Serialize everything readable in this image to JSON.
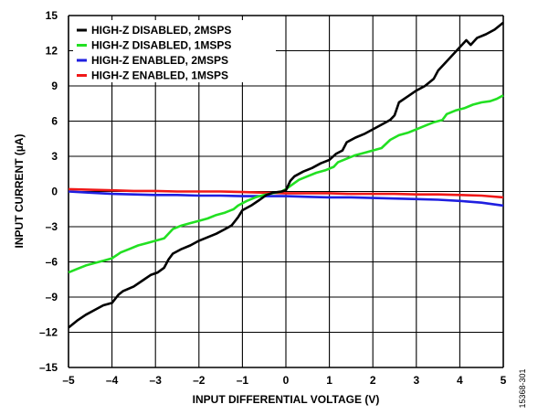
{
  "chart_data": {
    "type": "line",
    "title": "",
    "xlabel": "INPUT DIFFERENTIAL VOLTAGE (V)",
    "ylabel": "INPUT CURRENT (µA)",
    "xlim": [
      -5,
      5
    ],
    "ylim": [
      -15,
      15
    ],
    "x_ticks": [
      -5,
      -4,
      -3,
      -2,
      -1,
      0,
      1,
      2,
      3,
      4,
      5
    ],
    "x_tick_labels": [
      "–5",
      "–4",
      "–3",
      "–2",
      "–1",
      "0",
      "1",
      "2",
      "3",
      "4",
      "5"
    ],
    "y_ticks": [
      -15,
      -12,
      -9,
      -6,
      -3,
      0,
      3,
      6,
      9,
      12,
      15
    ],
    "y_tick_labels": [
      "–15",
      "–12",
      "–9",
      "–6",
      "–3",
      "0",
      "3",
      "6",
      "9",
      "12",
      "15"
    ],
    "grid": true,
    "legend_position": "top-left",
    "figure_id": "15368-301",
    "series": [
      {
        "name": "HIGH-Z DISABLED, 2MSPS",
        "color": "#000000",
        "points": [
          [
            -5,
            -11.6
          ],
          [
            -4.8,
            -11.0
          ],
          [
            -4.6,
            -10.5
          ],
          [
            -4.4,
            -10.1
          ],
          [
            -4.2,
            -9.7
          ],
          [
            -4.0,
            -9.5
          ],
          [
            -3.85,
            -8.8
          ],
          [
            -3.75,
            -8.5
          ],
          [
            -3.5,
            -8.1
          ],
          [
            -3.3,
            -7.6
          ],
          [
            -3.1,
            -7.1
          ],
          [
            -2.95,
            -6.9
          ],
          [
            -2.8,
            -6.5
          ],
          [
            -2.7,
            -5.8
          ],
          [
            -2.6,
            -5.3
          ],
          [
            -2.4,
            -4.9
          ],
          [
            -2.2,
            -4.6
          ],
          [
            -2.0,
            -4.2
          ],
          [
            -1.8,
            -3.9
          ],
          [
            -1.6,
            -3.6
          ],
          [
            -1.4,
            -3.2
          ],
          [
            -1.25,
            -2.9
          ],
          [
            -1.1,
            -2.2
          ],
          [
            -1.0,
            -1.6
          ],
          [
            -0.8,
            -1.2
          ],
          [
            -0.6,
            -0.7
          ],
          [
            -0.45,
            -0.3
          ],
          [
            -0.3,
            -0.1
          ],
          [
            -0.1,
            0.0
          ],
          [
            0,
            0.1
          ],
          [
            0.1,
            0.9
          ],
          [
            0.2,
            1.3
          ],
          [
            0.4,
            1.7
          ],
          [
            0.6,
            2.0
          ],
          [
            0.8,
            2.4
          ],
          [
            1.0,
            2.7
          ],
          [
            1.15,
            3.2
          ],
          [
            1.3,
            3.5
          ],
          [
            1.4,
            4.2
          ],
          [
            1.6,
            4.6
          ],
          [
            1.8,
            4.9
          ],
          [
            2.0,
            5.3
          ],
          [
            2.2,
            5.7
          ],
          [
            2.4,
            6.1
          ],
          [
            2.5,
            6.5
          ],
          [
            2.6,
            7.6
          ],
          [
            2.8,
            8.1
          ],
          [
            3.0,
            8.6
          ],
          [
            3.2,
            9.0
          ],
          [
            3.4,
            9.6
          ],
          [
            3.5,
            10.3
          ],
          [
            3.65,
            10.9
          ],
          [
            3.8,
            11.5
          ],
          [
            4.0,
            12.3
          ],
          [
            4.15,
            12.9
          ],
          [
            4.25,
            12.5
          ],
          [
            4.4,
            13.1
          ],
          [
            4.6,
            13.4
          ],
          [
            4.8,
            13.8
          ],
          [
            5.0,
            14.4
          ]
        ]
      },
      {
        "name": "HIGH-Z DISABLED, 1MSPS",
        "color": "#22e022",
        "points": [
          [
            -5,
            -6.9
          ],
          [
            -4.8,
            -6.6
          ],
          [
            -4.6,
            -6.3
          ],
          [
            -4.4,
            -6.1
          ],
          [
            -4.2,
            -5.9
          ],
          [
            -4.0,
            -5.7
          ],
          [
            -3.8,
            -5.2
          ],
          [
            -3.6,
            -4.9
          ],
          [
            -3.4,
            -4.6
          ],
          [
            -3.2,
            -4.4
          ],
          [
            -3.0,
            -4.2
          ],
          [
            -2.8,
            -4.0
          ],
          [
            -2.6,
            -3.2
          ],
          [
            -2.4,
            -2.9
          ],
          [
            -2.2,
            -2.7
          ],
          [
            -2.0,
            -2.5
          ],
          [
            -1.8,
            -2.3
          ],
          [
            -1.6,
            -2.0
          ],
          [
            -1.4,
            -1.8
          ],
          [
            -1.2,
            -1.5
          ],
          [
            -1.1,
            -1.2
          ],
          [
            -0.9,
            -0.8
          ],
          [
            -0.7,
            -0.5
          ],
          [
            -0.5,
            -0.3
          ],
          [
            -0.3,
            -0.15
          ],
          [
            -0.1,
            0.0
          ],
          [
            0,
            0.2
          ],
          [
            0.15,
            0.6
          ],
          [
            0.3,
            1.0
          ],
          [
            0.5,
            1.3
          ],
          [
            0.7,
            1.6
          ],
          [
            0.9,
            1.8
          ],
          [
            1.1,
            2.1
          ],
          [
            1.2,
            2.5
          ],
          [
            1.4,
            2.8
          ],
          [
            1.6,
            3.1
          ],
          [
            1.8,
            3.3
          ],
          [
            2.0,
            3.5
          ],
          [
            2.2,
            3.7
          ],
          [
            2.4,
            4.4
          ],
          [
            2.6,
            4.8
          ],
          [
            2.8,
            5.0
          ],
          [
            3.0,
            5.3
          ],
          [
            3.2,
            5.6
          ],
          [
            3.4,
            5.9
          ],
          [
            3.6,
            6.1
          ],
          [
            3.7,
            6.6
          ],
          [
            3.9,
            6.9
          ],
          [
            4.1,
            7.1
          ],
          [
            4.3,
            7.4
          ],
          [
            4.5,
            7.6
          ],
          [
            4.7,
            7.7
          ],
          [
            4.85,
            7.9
          ],
          [
            5.0,
            8.2
          ]
        ]
      },
      {
        "name": "HIGH-Z ENABLED, 2MSPS",
        "color": "#1f1fe0",
        "points": [
          [
            -5,
            0.0
          ],
          [
            -4.5,
            -0.1
          ],
          [
            -4,
            -0.2
          ],
          [
            -3.5,
            -0.25
          ],
          [
            -3,
            -0.3
          ],
          [
            -2.5,
            -0.3
          ],
          [
            -2,
            -0.35
          ],
          [
            -1.5,
            -0.35
          ],
          [
            -1,
            -0.4
          ],
          [
            -0.5,
            -0.4
          ],
          [
            0,
            -0.4
          ],
          [
            0.5,
            -0.45
          ],
          [
            1,
            -0.5
          ],
          [
            1.5,
            -0.5
          ],
          [
            2,
            -0.55
          ],
          [
            2.5,
            -0.6
          ],
          [
            3,
            -0.65
          ],
          [
            3.5,
            -0.7
          ],
          [
            4,
            -0.8
          ],
          [
            4.5,
            -0.95
          ],
          [
            5,
            -1.2
          ]
        ]
      },
      {
        "name": "HIGH-Z ENABLED, 1MSPS",
        "color": "#f01818",
        "points": [
          [
            -5,
            0.2
          ],
          [
            -4.5,
            0.15
          ],
          [
            -4,
            0.1
          ],
          [
            -3.5,
            0.05
          ],
          [
            -3,
            0.05
          ],
          [
            -2.5,
            0.0
          ],
          [
            -2,
            0.0
          ],
          [
            -1.5,
            0.0
          ],
          [
            -1,
            -0.05
          ],
          [
            -0.5,
            -0.1
          ],
          [
            0,
            -0.15
          ],
          [
            0.5,
            -0.15
          ],
          [
            1,
            -0.15
          ],
          [
            1.5,
            -0.2
          ],
          [
            2,
            -0.2
          ],
          [
            2.5,
            -0.2
          ],
          [
            3,
            -0.25
          ],
          [
            3.5,
            -0.25
          ],
          [
            4,
            -0.3
          ],
          [
            4.5,
            -0.35
          ],
          [
            5,
            -0.5
          ]
        ]
      }
    ]
  }
}
